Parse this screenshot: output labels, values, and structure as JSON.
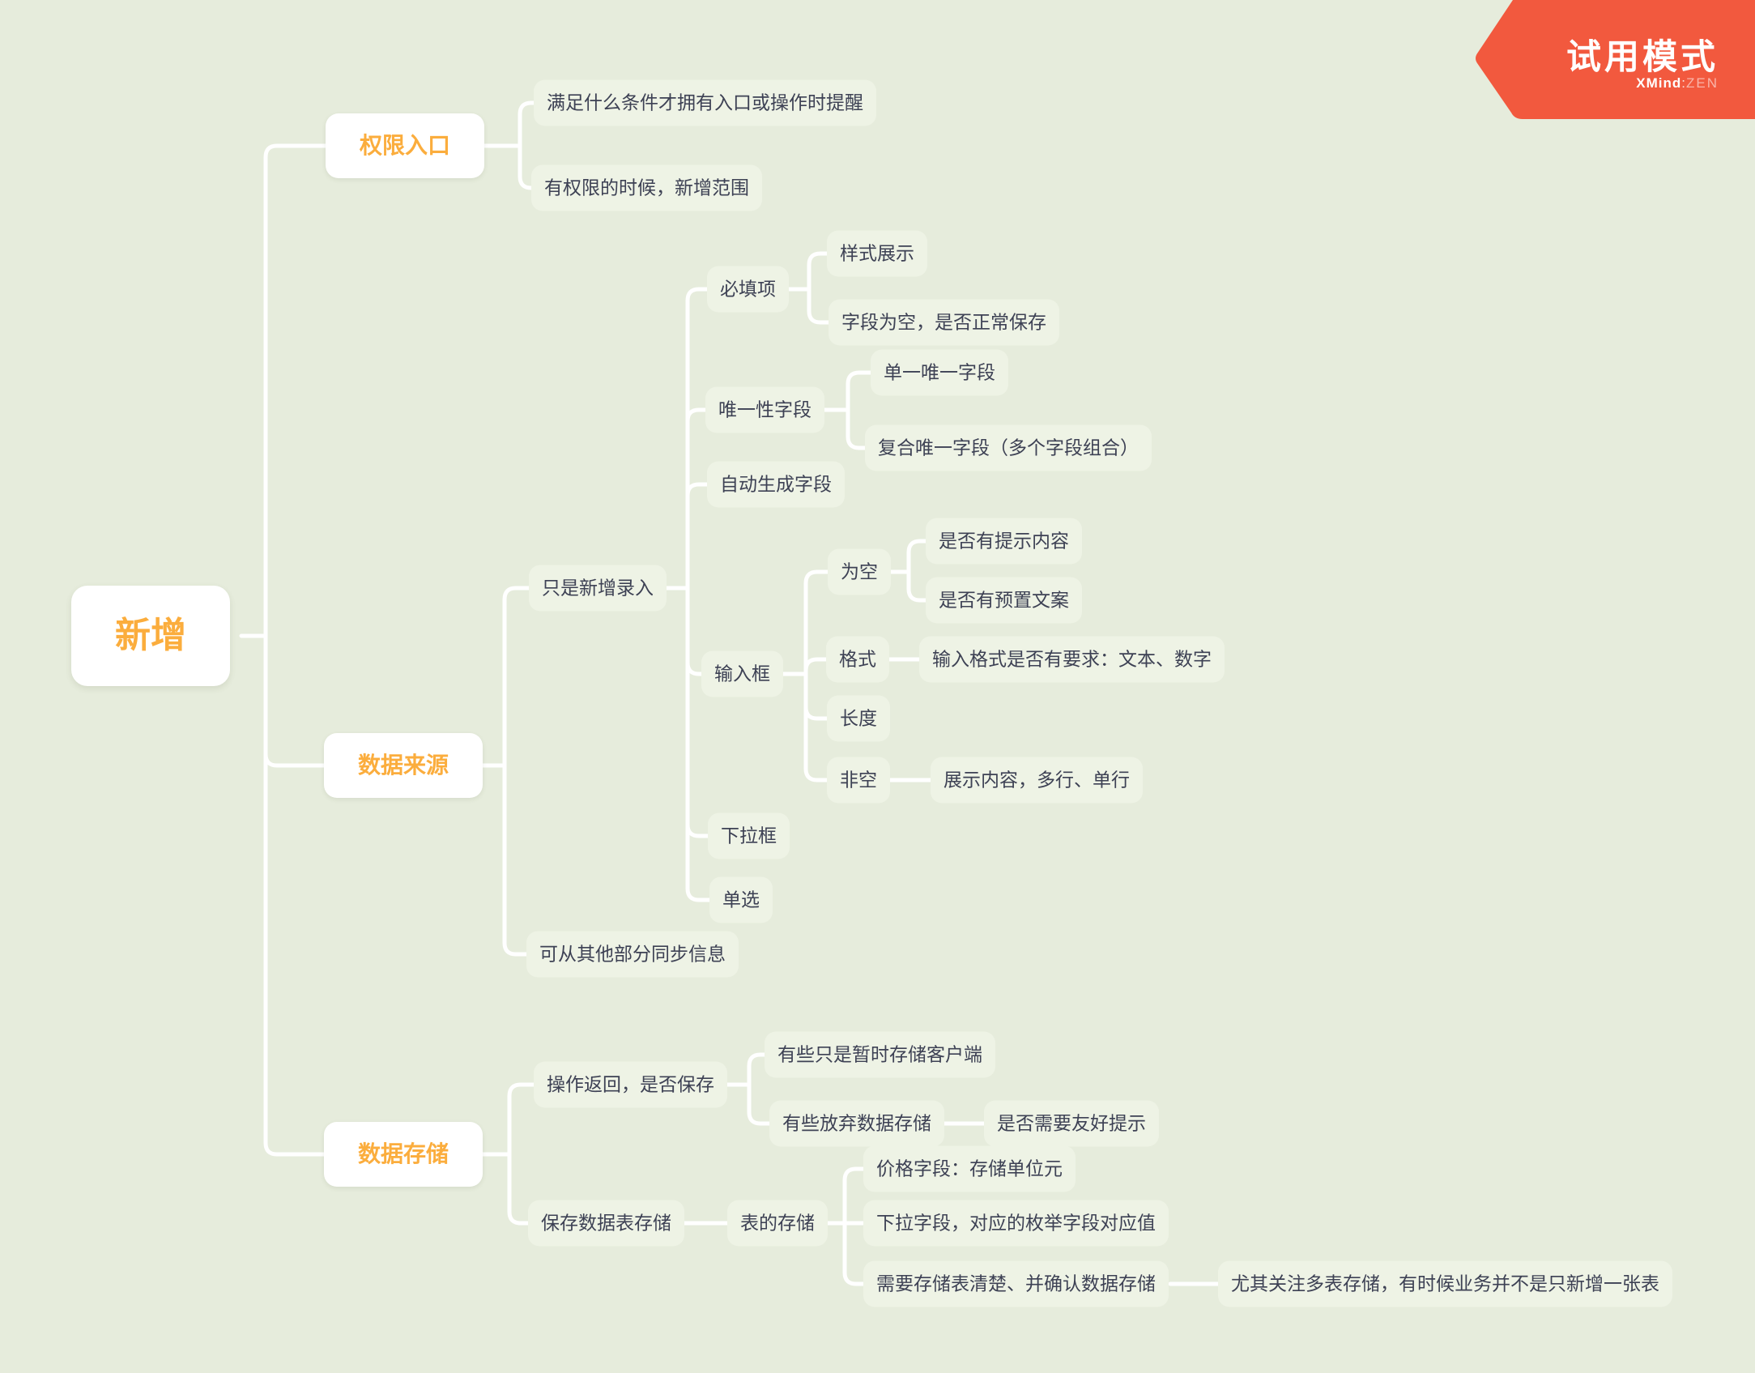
{
  "banner": {
    "title": "试用模式",
    "brand_bold": "XMind",
    "brand_sep": ":",
    "brand_light": "ZEN"
  },
  "nodes": {
    "root": "新增",
    "perm": "权限入口",
    "perm_cond": "满足什么条件才拥有入口或操作时提醒",
    "perm_scope": "有权限的时候，新增范围",
    "source": "数据来源",
    "only_entry": "只是新增录入",
    "required": "必填项",
    "style_show": "样式展示",
    "empty_save": "字段为空，是否正常保存",
    "unique": "唯一性字段",
    "single_unique": "单一唯一字段",
    "composite_unique": "复合唯一字段（多个字段组合）",
    "auto_field": "自动生成字段",
    "input_box": "输入框",
    "blank": "为空",
    "hint": "是否有提示内容",
    "preset": "是否有预置文案",
    "format": "格式",
    "format_req": "输入格式是否有要求：文本、数字",
    "length": "长度",
    "nonempty": "非空",
    "display": "展示内容，多行、单行",
    "dropdown": "下拉框",
    "radio": "单选",
    "sync": "可从其他部分同步信息",
    "storage": "数据存储",
    "op_return": "操作返回，是否保存",
    "temp_client": "有些只是暂时存储客户端",
    "abandon": "有些放弃数据存储",
    "friendly": "是否需要友好提示",
    "save_table": "保存数据表存储",
    "table_store": "表的存储",
    "price": "价格字段：存储单位元",
    "enum_field": "下拉字段，对应的枚举字段对应值",
    "confirm": "需要存储表清楚、并确认数据存储",
    "multi_table": "尤其关注多表存储，有时候业务并不是只新增一张表"
  },
  "colors": {
    "background": "#e6ecdc",
    "node_fill": "#eef3e5",
    "topic_fill": "#ffffff",
    "accent_orange": "#fbad3d",
    "text_dark": "#3d4154",
    "connector": "#ffffff",
    "banner_red": "#f2593e",
    "banner_text": "#ffffff"
  }
}
